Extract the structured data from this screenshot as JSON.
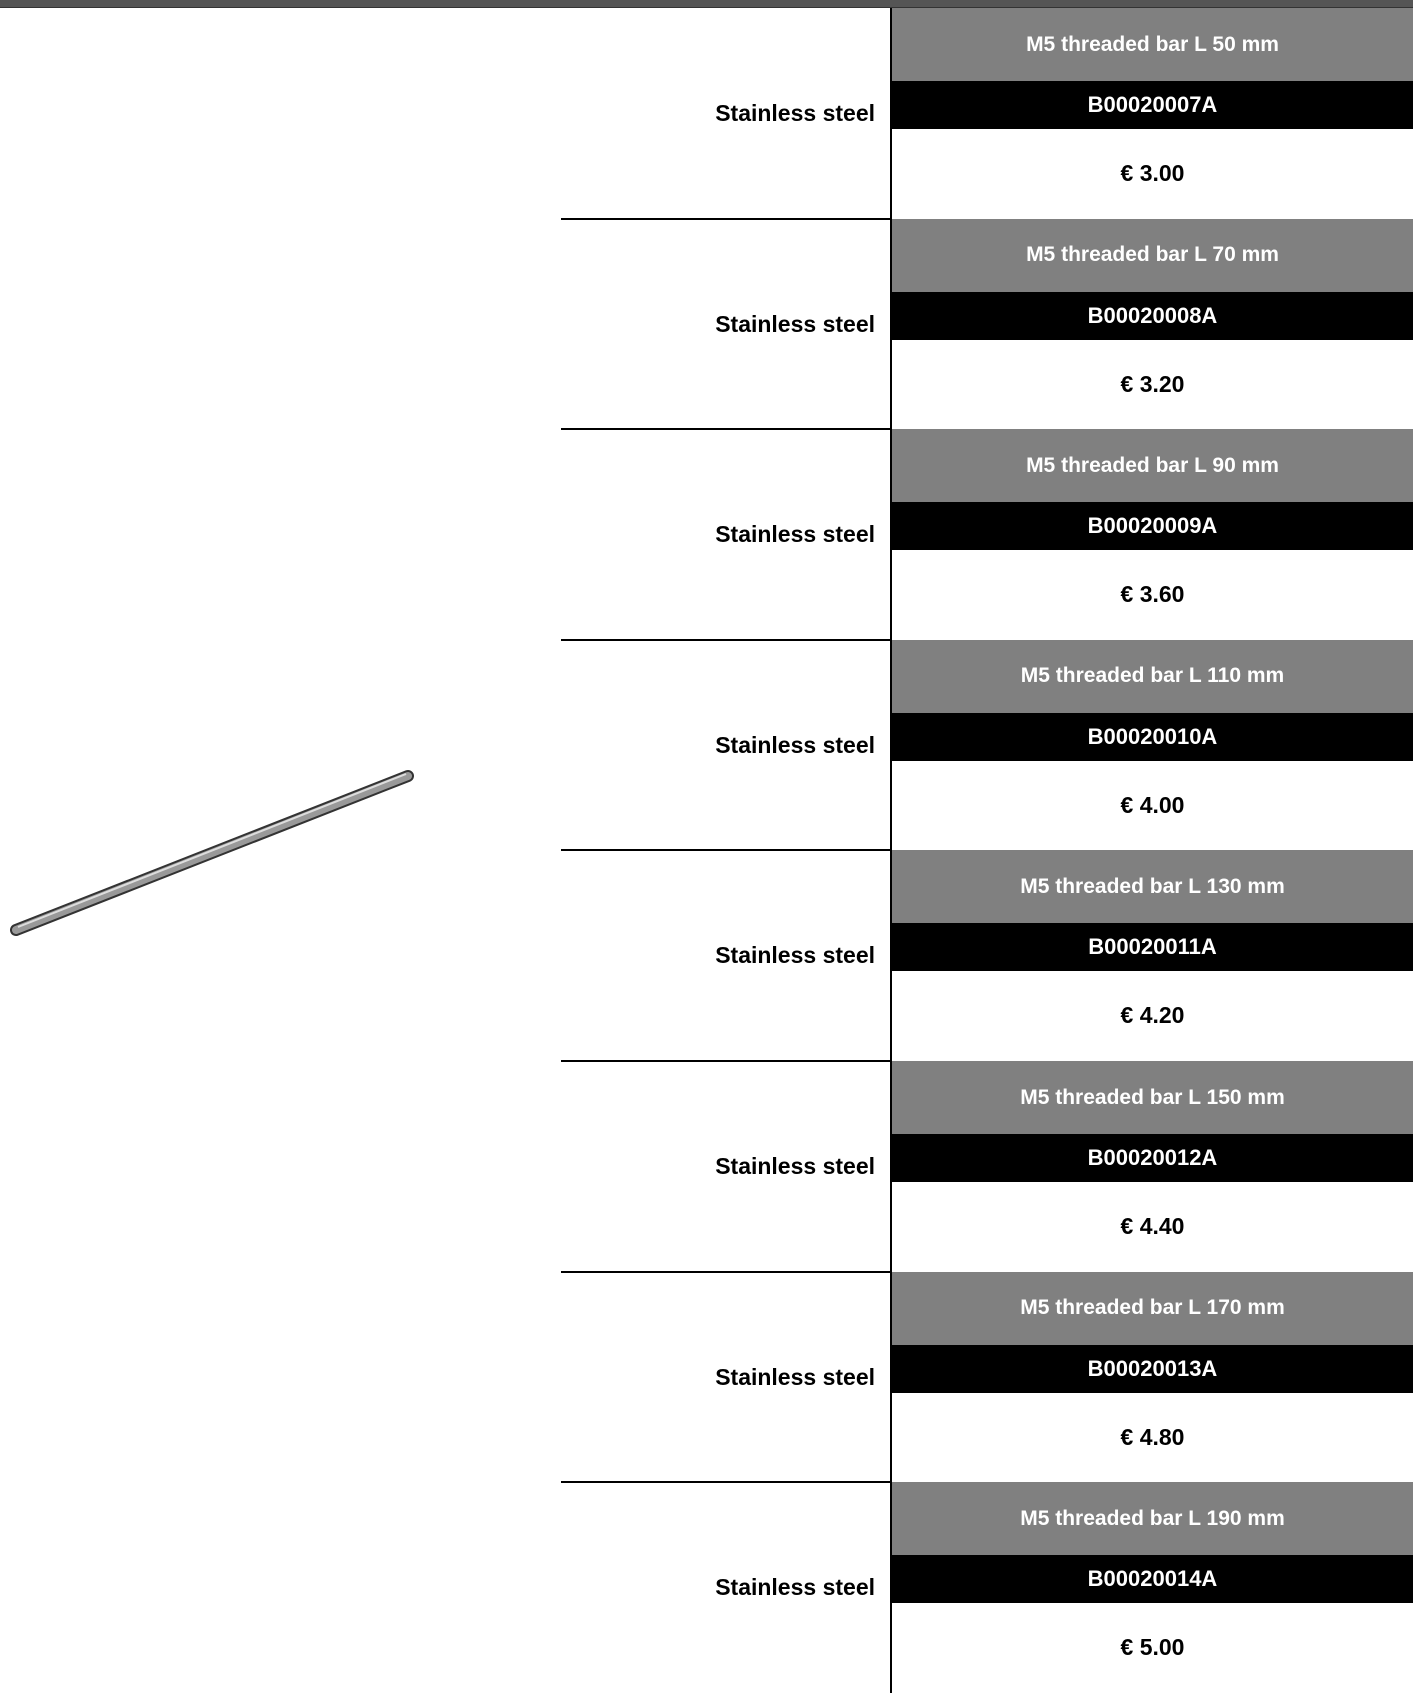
{
  "rows": [
    {
      "material": "Stainless steel",
      "name": "M5 threaded bar L 50 mm",
      "code": "B00020007A",
      "price": "€ 3.00"
    },
    {
      "material": "Stainless steel",
      "name": "M5 threaded bar L 70 mm",
      "code": "B00020008A",
      "price": "€ 3.20"
    },
    {
      "material": "Stainless steel",
      "name": "M5 threaded bar L 90 mm",
      "code": "B00020009A",
      "price": "€ 3.60"
    },
    {
      "material": "Stainless steel",
      "name": "M5 threaded bar L 110 mm",
      "code": "B00020010A",
      "price": "€ 4.00"
    },
    {
      "material": "Stainless steel",
      "name": "M5 threaded bar L 130 mm",
      "code": "B00020011A",
      "price": "€ 4.20"
    },
    {
      "material": "Stainless steel",
      "name": "M5 threaded bar L 150 mm",
      "code": "B00020012A",
      "price": "€ 4.40"
    },
    {
      "material": "Stainless steel",
      "name": "M5 threaded bar L 170 mm",
      "code": "B00020013A",
      "price": "€ 4.80"
    },
    {
      "material": "Stainless steel",
      "name": "M5 threaded bar L 190 mm",
      "code": "B00020014A",
      "price": "€ 5.00"
    }
  ]
}
